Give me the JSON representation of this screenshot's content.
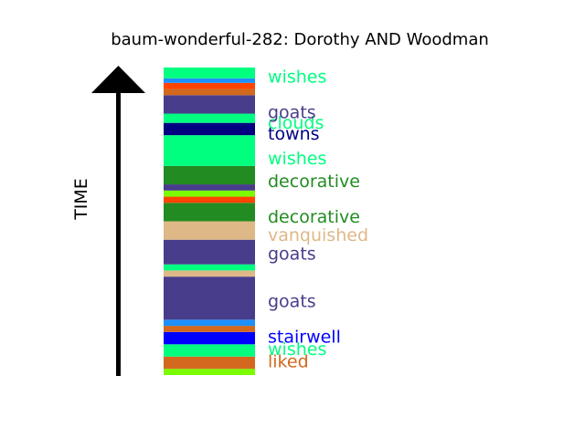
{
  "chart_data": {
    "type": "bar",
    "title": "baum-wonderful-282: Dorothy AND Woodman",
    "ylabel": "TIME",
    "orientation": "time runs bottom to top",
    "bands": [
      {
        "color": "#7CFC00",
        "start": 0.0,
        "end": 2.0
      },
      {
        "color": "#D2691E",
        "start": 2.0,
        "end": 6.0
      },
      {
        "color": "#00FF7F",
        "start": 6.0,
        "end": 10.0
      },
      {
        "color": "#0000FF",
        "start": 10.0,
        "end": 14.0
      },
      {
        "color": "#D2691E",
        "start": 14.0,
        "end": 16.0
      },
      {
        "color": "#1E90FF",
        "start": 16.0,
        "end": 18.0
      },
      {
        "color": "#483D8B",
        "start": 18.0,
        "end": 32.0
      },
      {
        "color": "#DEB887",
        "start": 32.0,
        "end": 34.0
      },
      {
        "color": "#00FF7F",
        "start": 34.0,
        "end": 36.0
      },
      {
        "color": "#483D8B",
        "start": 36.0,
        "end": 44.0
      },
      {
        "color": "#DEB887",
        "start": 44.0,
        "end": 50.0
      },
      {
        "color": "#228B22",
        "start": 50.0,
        "end": 56.0
      },
      {
        "color": "#FF4500",
        "start": 56.0,
        "end": 58.0
      },
      {
        "color": "#7CFC00",
        "start": 58.0,
        "end": 60.0
      },
      {
        "color": "#483D8B",
        "start": 60.0,
        "end": 62.0
      },
      {
        "color": "#228B22",
        "start": 62.0,
        "end": 68.0
      },
      {
        "color": "#00FF7F",
        "start": 68.0,
        "end": 78.0
      },
      {
        "color": "#000080",
        "start": 78.0,
        "end": 82.0
      },
      {
        "color": "#00FF7F",
        "start": 82.0,
        "end": 85.0
      },
      {
        "color": "#483D8B",
        "start": 85.0,
        "end": 91.0
      },
      {
        "color": "#D2691E",
        "start": 91.0,
        "end": 93.0
      },
      {
        "color": "#FF4500",
        "start": 93.0,
        "end": 95.0
      },
      {
        "color": "#1E90FF",
        "start": 95.0,
        "end": 96.5
      },
      {
        "color": "#00FF7F",
        "start": 96.5,
        "end": 100.0
      }
    ],
    "labels": [
      {
        "text": "liked",
        "color": "#D2691E",
        "position": 4.5
      },
      {
        "text": "wishes",
        "color": "#00FF7F",
        "position": 8.5
      },
      {
        "text": "stairwell",
        "color": "#0000FF",
        "position": 12.5
      },
      {
        "text": "goats",
        "color": "#483D8B",
        "position": 24.0
      },
      {
        "text": "goats",
        "color": "#483D8B",
        "position": 39.5
      },
      {
        "text": "vanquished",
        "color": "#DEB887",
        "position": 45.5
      },
      {
        "text": "decorative",
        "color": "#228B22",
        "position": 51.5
      },
      {
        "text": "decorative",
        "color": "#228B22",
        "position": 63.0
      },
      {
        "text": "wishes",
        "color": "#00FF7F",
        "position": 70.5
      },
      {
        "text": "towns",
        "color": "#000080",
        "position": 78.5
      },
      {
        "text": "clouds",
        "color": "#00FF7F",
        "position": 82.0
      },
      {
        "text": "goats",
        "color": "#483D8B",
        "position": 85.5
      },
      {
        "text": "wishes",
        "color": "#00FF7F",
        "position": 97.0
      }
    ]
  }
}
